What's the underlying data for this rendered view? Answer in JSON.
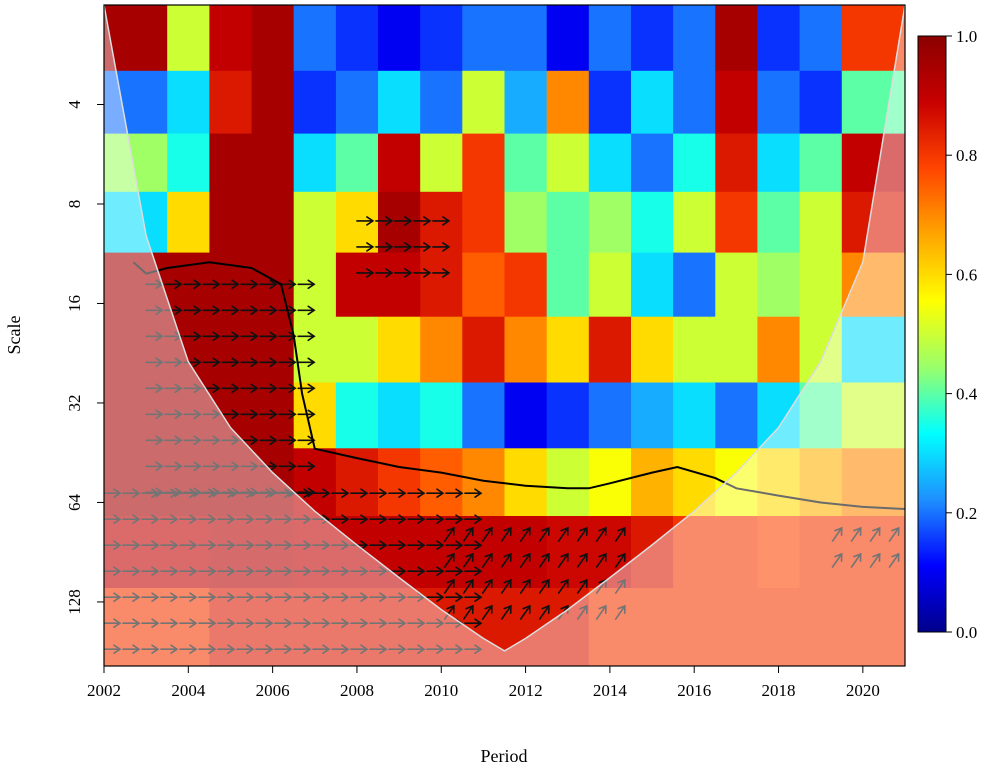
{
  "colors": {
    "scale": [
      "#00008b",
      "#0000ff",
      "#1e90ff",
      "#00ffff",
      "#9aff6a",
      "#ffff00",
      "#ffa500",
      "#ff4500",
      "#c80000",
      "#8b0000"
    ],
    "contour": "#000000",
    "arrow": "#111111",
    "coi_shade": "#ffffff",
    "coi_line": "#dddddd"
  },
  "chart_data": {
    "type": "heatmap",
    "title": "",
    "xlabel": "Period",
    "ylabel": "Scale",
    "x_ticks": [
      "2002",
      "2004",
      "2006",
      "2008",
      "2010",
      "2012",
      "2014",
      "2016",
      "2018",
      "2020"
    ],
    "x_range": [
      2002,
      2021
    ],
    "y_ticks": [
      "4",
      "8",
      "16",
      "32",
      "64",
      "128"
    ],
    "y_scale": "log2",
    "y_range": [
      2,
      200
    ],
    "y_reversed": true,
    "colorbar": {
      "ticks": [
        "1.0",
        "0.8",
        "0.6",
        "0.4",
        "0.2",
        "0.0"
      ],
      "range": [
        0,
        1
      ]
    },
    "cone_of_influence": {
      "x": [
        2002,
        2003,
        2004,
        2005,
        2006,
        2007,
        2008,
        2009,
        2010,
        2011,
        2011.5,
        2012,
        2013,
        2014,
        2015,
        2016,
        2017,
        2018,
        2019,
        2020,
        2021
      ],
      "scale": [
        2,
        10,
        24,
        38,
        52,
        68,
        86,
        108,
        135,
        165,
        180,
        165,
        135,
        108,
        86,
        68,
        52,
        38,
        24,
        12,
        2
      ]
    },
    "significance_contours": [
      {
        "name": "",
        "x": [
          2002.7,
          2003,
          2003.5,
          2004.5,
          2005.5,
          2006.2,
          2006.5,
          2006.7,
          2007,
          2008,
          2009,
          2010,
          2011,
          2012,
          2013,
          2013.5,
          2014,
          2015,
          2015.6,
          2016.5,
          2017,
          2018,
          2019,
          2020,
          2021
        ],
        "scale": [
          12,
          13,
          12.5,
          12,
          12.5,
          14,
          20,
          30,
          44,
          47,
          50,
          52,
          55,
          57,
          58,
          58,
          56,
          52,
          50,
          54,
          58,
          61,
          64,
          66,
          67
        ]
      }
    ],
    "columns": [
      {
        "x": 2003,
        "scale": [
          2.5,
          4,
          6,
          9,
          14,
          22,
          35,
          55,
          90,
          150
        ],
        "coherence": [
          0.95,
          0.2,
          0.45,
          0.3,
          0.95,
          0.95,
          0.95,
          0.95,
          0.9,
          0.8
        ]
      },
      {
        "x": 2004,
        "scale": [
          2.5,
          4,
          6,
          9,
          14,
          22,
          35,
          55,
          90,
          150
        ],
        "coherence": [
          0.5,
          0.3,
          0.35,
          0.6,
          0.95,
          0.95,
          0.95,
          0.95,
          0.9,
          0.8
        ]
      },
      {
        "x": 2005,
        "scale": [
          2.5,
          4,
          6,
          9,
          14,
          22,
          35,
          55,
          90,
          150
        ],
        "coherence": [
          0.9,
          0.85,
          0.95,
          0.95,
          0.95,
          0.95,
          0.95,
          0.95,
          0.92,
          0.85
        ]
      },
      {
        "x": 2006,
        "scale": [
          2.5,
          4,
          6,
          9,
          14,
          22,
          35,
          55,
          90,
          150
        ],
        "coherence": [
          0.95,
          0.95,
          0.95,
          0.95,
          0.95,
          0.95,
          0.95,
          0.95,
          0.92,
          0.85
        ]
      },
      {
        "x": 2007,
        "scale": [
          2.5,
          4,
          6,
          9,
          14,
          22,
          35,
          55,
          90,
          150
        ],
        "coherence": [
          0.2,
          0.15,
          0.3,
          0.5,
          0.5,
          0.5,
          0.6,
          0.9,
          0.9,
          0.85
        ]
      },
      {
        "x": 2008,
        "scale": [
          2.5,
          4,
          6,
          9,
          14,
          22,
          35,
          55,
          90,
          150
        ],
        "coherence": [
          0.15,
          0.2,
          0.4,
          0.6,
          0.9,
          0.5,
          0.35,
          0.85,
          0.9,
          0.85
        ]
      },
      {
        "x": 2009,
        "scale": [
          2.5,
          4,
          6,
          9,
          14,
          22,
          35,
          55,
          90,
          150
        ],
        "coherence": [
          0.1,
          0.3,
          0.9,
          0.95,
          0.9,
          0.6,
          0.3,
          0.8,
          0.9,
          0.85
        ]
      },
      {
        "x": 2010,
        "scale": [
          2.5,
          4,
          6,
          9,
          14,
          22,
          35,
          55,
          90,
          150
        ],
        "coherence": [
          0.15,
          0.2,
          0.5,
          0.85,
          0.85,
          0.7,
          0.35,
          0.75,
          0.9,
          0.85
        ]
      },
      {
        "x": 2011,
        "scale": [
          2.5,
          4,
          6,
          9,
          14,
          22,
          35,
          55,
          90,
          150
        ],
        "coherence": [
          0.2,
          0.5,
          0.8,
          0.8,
          0.75,
          0.85,
          0.2,
          0.7,
          0.9,
          0.85
        ]
      },
      {
        "x": 2012,
        "scale": [
          2.5,
          4,
          6,
          9,
          14,
          22,
          35,
          55,
          90,
          150
        ],
        "coherence": [
          0.2,
          0.25,
          0.4,
          0.45,
          0.8,
          0.7,
          0.1,
          0.6,
          0.9,
          0.85
        ]
      },
      {
        "x": 2013,
        "scale": [
          2.5,
          4,
          6,
          9,
          14,
          22,
          35,
          55,
          90,
          150
        ],
        "coherence": [
          0.1,
          0.7,
          0.5,
          0.4,
          0.4,
          0.6,
          0.15,
          0.5,
          0.88,
          0.85
        ]
      },
      {
        "x": 2014,
        "scale": [
          2.5,
          4,
          6,
          9,
          14,
          22,
          35,
          55,
          90,
          150
        ],
        "coherence": [
          0.2,
          0.15,
          0.3,
          0.45,
          0.5,
          0.85,
          0.2,
          0.55,
          0.88,
          0.8
        ]
      },
      {
        "x": 2015,
        "scale": [
          2.5,
          4,
          6,
          9,
          14,
          22,
          35,
          55,
          90,
          150
        ],
        "coherence": [
          0.15,
          0.3,
          0.2,
          0.35,
          0.3,
          0.6,
          0.25,
          0.65,
          0.85,
          0.8
        ]
      },
      {
        "x": 2016,
        "scale": [
          2.5,
          4,
          6,
          9,
          14,
          22,
          35,
          55,
          90,
          150
        ],
        "coherence": [
          0.2,
          0.2,
          0.35,
          0.5,
          0.2,
          0.5,
          0.3,
          0.6,
          0.8,
          0.8
        ]
      },
      {
        "x": 2017,
        "scale": [
          2.5,
          4,
          6,
          9,
          14,
          22,
          35,
          55,
          90,
          150
        ],
        "coherence": [
          0.95,
          0.9,
          0.85,
          0.8,
          0.5,
          0.5,
          0.2,
          0.55,
          0.8,
          0.8
        ]
      },
      {
        "x": 2018,
        "scale": [
          2.5,
          4,
          6,
          9,
          14,
          22,
          35,
          55,
          90,
          150
        ],
        "coherence": [
          0.15,
          0.2,
          0.3,
          0.4,
          0.45,
          0.7,
          0.3,
          0.6,
          0.78,
          0.8
        ]
      },
      {
        "x": 2019,
        "scale": [
          2.5,
          4,
          6,
          9,
          14,
          22,
          35,
          55,
          90,
          150
        ],
        "coherence": [
          0.2,
          0.15,
          0.4,
          0.5,
          0.5,
          0.5,
          0.4,
          0.65,
          0.8,
          0.8
        ]
      },
      {
        "x": 2020,
        "scale": [
          2.5,
          4,
          6,
          9,
          14,
          22,
          35,
          55,
          90,
          150
        ],
        "coherence": [
          0.8,
          0.4,
          0.9,
          0.85,
          0.7,
          0.3,
          0.5,
          0.7,
          0.8,
          0.8
        ]
      }
    ],
    "phase_arrow_regions": [
      {
        "x": [
          2002,
          2011
        ],
        "scale": [
          60,
          190
        ],
        "direction": "right"
      },
      {
        "x": [
          2003,
          2007
        ],
        "scale": [
          14,
          60
        ],
        "direction": "right"
      },
      {
        "x": [
          2008,
          2010
        ],
        "scale": [
          9,
          15
        ],
        "direction": "right"
      },
      {
        "x": [
          2010,
          2014.5
        ],
        "scale": [
          80,
          140
        ],
        "direction": "up-right"
      },
      {
        "x": [
          2019.2,
          2021
        ],
        "scale": [
          80,
          110
        ],
        "direction": "up-right"
      }
    ]
  }
}
